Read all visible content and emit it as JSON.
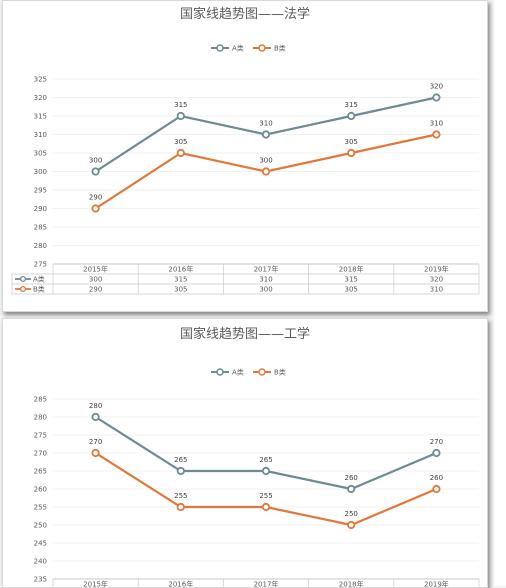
{
  "chart_data": [
    {
      "type": "line",
      "title": "国家线趋势图——法学",
      "categories": [
        "2015年",
        "2016年",
        "2017年",
        "2018年",
        "2019年"
      ],
      "series": [
        {
          "name": "A类",
          "values": [
            300,
            315,
            310,
            315,
            320
          ],
          "color": "#6d8b92"
        },
        {
          "name": "B类",
          "values": [
            290,
            305,
            300,
            305,
            310
          ],
          "color": "#e2773a"
        }
      ],
      "ylim": [
        275,
        325
      ],
      "yticks": [
        275,
        280,
        285,
        290,
        295,
        300,
        305,
        310,
        315,
        320,
        325
      ],
      "legend": "top",
      "grid": true,
      "data_table": true
    },
    {
      "type": "line",
      "title": "国家线趋势图——工学",
      "categories": [
        "2015年",
        "2016年",
        "2017年",
        "2018年",
        "2019年"
      ],
      "series": [
        {
          "name": "A类",
          "values": [
            280,
            265,
            265,
            260,
            270
          ],
          "color": "#6d8b92"
        },
        {
          "name": "B类",
          "values": [
            270,
            255,
            255,
            250,
            260
          ],
          "color": "#e2773a"
        }
      ],
      "ylim": [
        235,
        285
      ],
      "yticks": [
        235,
        240,
        245,
        250,
        255,
        260,
        265,
        270,
        275,
        280,
        285
      ],
      "legend": "top",
      "grid": true,
      "data_table": true
    }
  ]
}
